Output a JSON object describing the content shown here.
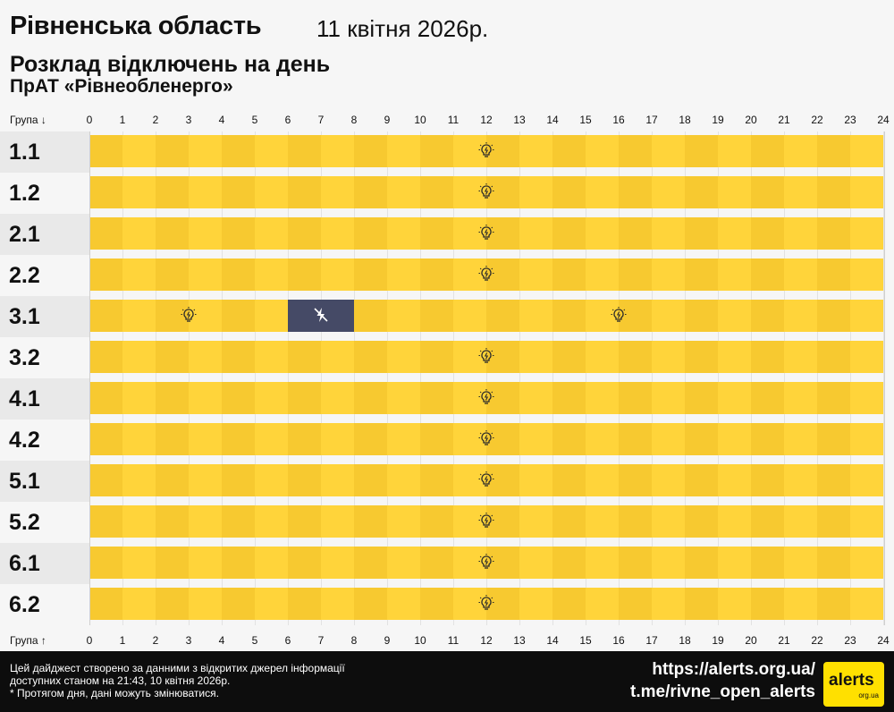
{
  "header": {
    "region": "Рівненська область",
    "date": "11 квітня 2026р.",
    "subtitle": "Розклад відключень на день",
    "company": "ПрАТ «Рівнеобленерго»"
  },
  "axis": {
    "top_label": "Група ↓",
    "bottom_label": "Група ↑",
    "ticks": [
      "0",
      "1",
      "2",
      "3",
      "4",
      "5",
      "6",
      "7",
      "8",
      "9",
      "10",
      "11",
      "12",
      "13",
      "14",
      "15",
      "16",
      "17",
      "18",
      "19",
      "20",
      "21",
      "22",
      "23",
      "24"
    ]
  },
  "chart_data": {
    "type": "table",
    "title": "Розклад відключень на день",
    "x_unit": "hours",
    "xlim": [
      0,
      24
    ],
    "legend": [
      {
        "state": "on",
        "meaning": "power available",
        "color": "#ffd43a",
        "icon": "lightbulb-icon"
      },
      {
        "state": "off",
        "meaning": "power outage",
        "color": "#454a66",
        "icon": "no-power-icon"
      }
    ],
    "groups": [
      {
        "name": "1.1",
        "segments": [
          {
            "start": 0,
            "end": 24,
            "state": "on"
          }
        ]
      },
      {
        "name": "1.2",
        "segments": [
          {
            "start": 0,
            "end": 24,
            "state": "on"
          }
        ]
      },
      {
        "name": "2.1",
        "segments": [
          {
            "start": 0,
            "end": 24,
            "state": "on"
          }
        ]
      },
      {
        "name": "2.2",
        "segments": [
          {
            "start": 0,
            "end": 24,
            "state": "on"
          }
        ]
      },
      {
        "name": "3.1",
        "segments": [
          {
            "start": 0,
            "end": 6,
            "state": "on"
          },
          {
            "start": 6,
            "end": 8,
            "state": "off"
          },
          {
            "start": 8,
            "end": 24,
            "state": "on"
          }
        ]
      },
      {
        "name": "3.2",
        "segments": [
          {
            "start": 0,
            "end": 24,
            "state": "on"
          }
        ]
      },
      {
        "name": "4.1",
        "segments": [
          {
            "start": 0,
            "end": 24,
            "state": "on"
          }
        ]
      },
      {
        "name": "4.2",
        "segments": [
          {
            "start": 0,
            "end": 24,
            "state": "on"
          }
        ]
      },
      {
        "name": "5.1",
        "segments": [
          {
            "start": 0,
            "end": 24,
            "state": "on"
          }
        ]
      },
      {
        "name": "5.2",
        "segments": [
          {
            "start": 0,
            "end": 24,
            "state": "on"
          }
        ]
      },
      {
        "name": "6.1",
        "segments": [
          {
            "start": 0,
            "end": 24,
            "state": "on"
          }
        ]
      },
      {
        "name": "6.2",
        "segments": [
          {
            "start": 0,
            "end": 24,
            "state": "on"
          }
        ]
      }
    ]
  },
  "colors": {
    "on_a": "#f7c930",
    "on_b": "#ffd43a",
    "off": "#454a66",
    "row_label_alt": "#e9e9e9",
    "footer_bg": "#0d0d0d",
    "logo_bg": "#ffe000"
  },
  "footer": {
    "note_line1": "Цей дайджест створено за данними з відкритих джерел інформації",
    "note_line2": "доступних станом на 21:43, 10 квітня 2026р.",
    "note_line3": "* Протягом дня, дані можуть змінюватися.",
    "url1": "https://alerts.org.ua/",
    "url2": "t.me/rivne_open_alerts",
    "logo_word": "alerts",
    "logo_domain": "org.ua"
  }
}
